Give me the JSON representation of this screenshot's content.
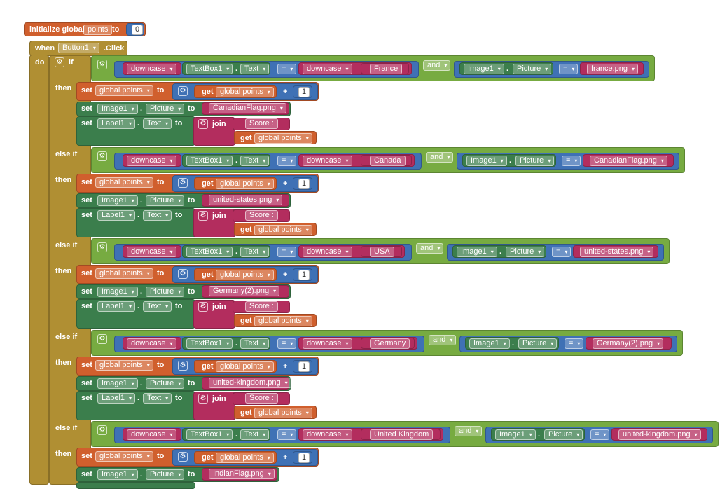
{
  "colors": {
    "variables": "#d05f2d",
    "control": "#b08f33",
    "logic": "#77ab41",
    "text": "#b32d5e",
    "component_getset": "#3b7e4c",
    "math": "#3f71b5",
    "component_event": "#b08f33"
  },
  "init_block": {
    "label_initialize": "initialize global",
    "var_name": "points",
    "label_to": "to",
    "value": "0"
  },
  "event_block": {
    "label_when": "when",
    "component": "Button1",
    "event": ".Click",
    "label_do": "do"
  },
  "labels": {
    "if": "if",
    "else_if": "else if",
    "then": "then",
    "and": "and",
    "eq": "=",
    "plus": "+",
    "set": "set",
    "get": "get",
    "to": "to",
    "join": "join",
    "downcase": "downcase",
    "dot": ".",
    "global_points": "global points",
    "score": "Score :",
    "one": "1",
    "textbox": "TextBox1",
    "text_prop": "Text",
    "image": "Image1",
    "picture_prop": "Picture",
    "label": "Label1"
  },
  "clauses": [
    {
      "keyword": "if",
      "country": "France",
      "check_image": "france.png",
      "next_image": "CanadianFlag.png"
    },
    {
      "keyword": "else if",
      "country": "Canada",
      "check_image": "CanadianFlag.png",
      "next_image": "united-states.png"
    },
    {
      "keyword": "else if",
      "country": "USA",
      "check_image": "united-states.png",
      "next_image": "Germany(2).png"
    },
    {
      "keyword": "else if",
      "country": "Germany",
      "check_image": "Germany(2).png",
      "next_image": "united-kingdom.png"
    },
    {
      "keyword": "else if",
      "country": "United Kingdom",
      "check_image": "united-kingdom.png",
      "next_image": "IndianFlag.png"
    }
  ]
}
